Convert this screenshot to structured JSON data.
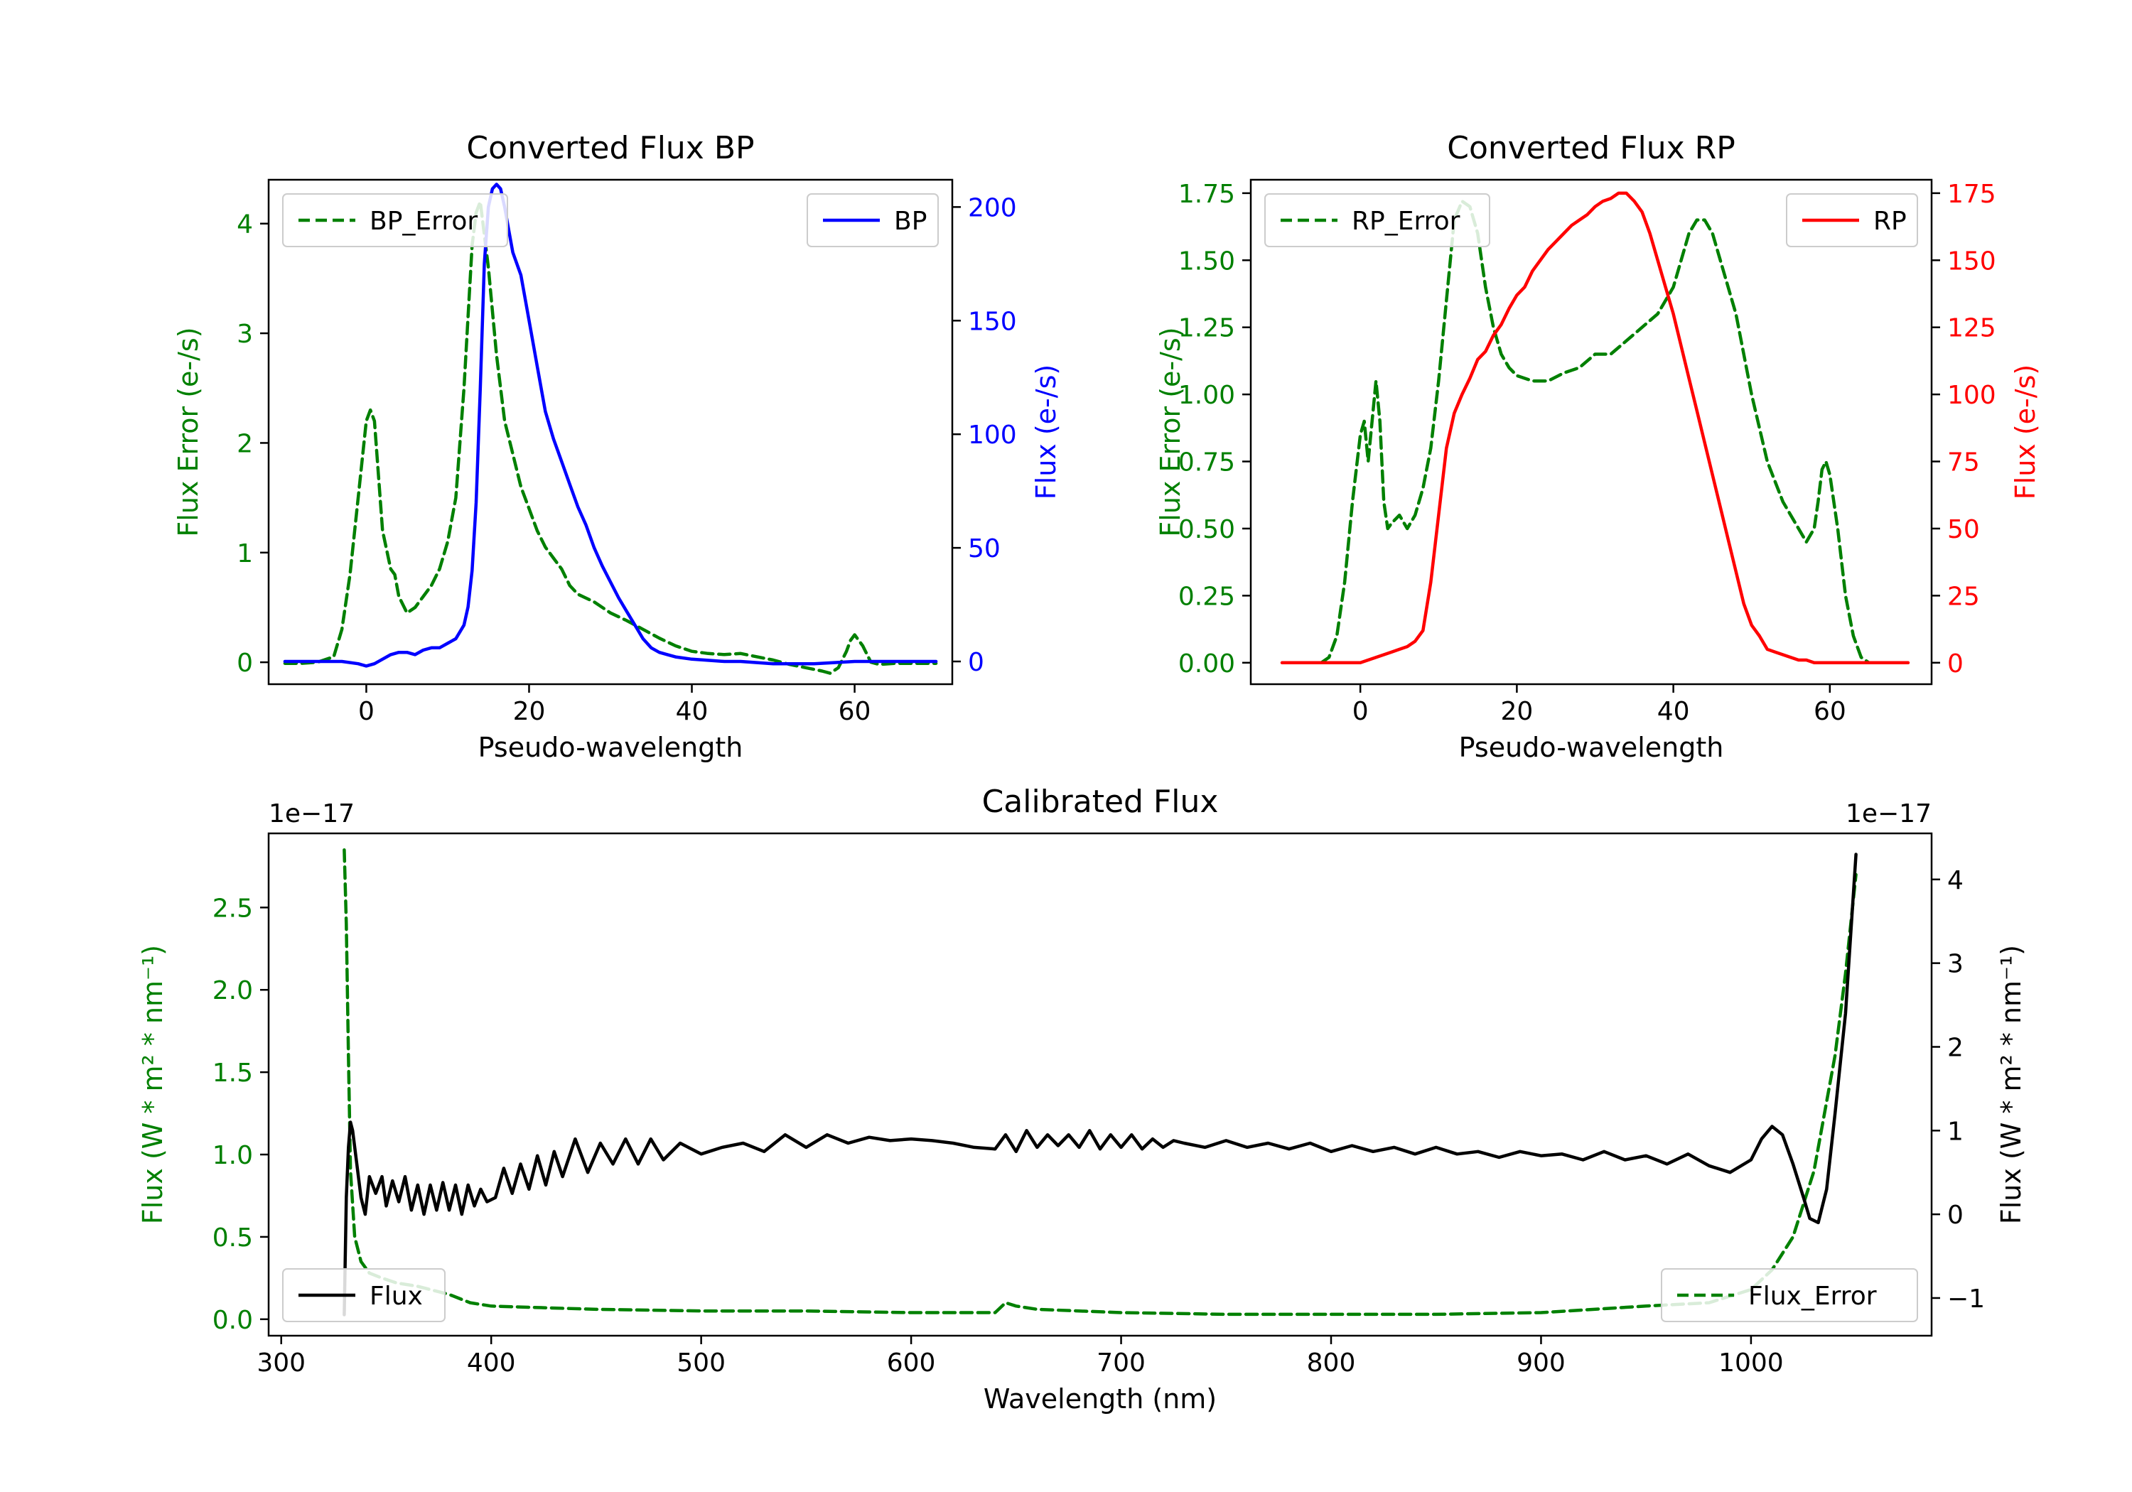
{
  "colors": {
    "bp": "#0000ff",
    "rp": "#ff0000",
    "error": "#008000",
    "flux": "#000000"
  },
  "chart_data": [
    {
      "id": "bp",
      "type": "line",
      "title": "Converted Flux BP",
      "xlabel": "Pseudo-wavelength",
      "xlim": [
        -12,
        72
      ],
      "xticks": [
        0,
        20,
        40,
        60
      ],
      "xtick_labels": [
        "0",
        "20",
        "40",
        "60"
      ],
      "left_axis": {
        "label": "Flux Error (e-/s)",
        "color": "#008000",
        "ylim": [
          -0.2,
          4.4
        ],
        "ticks": [
          0,
          1,
          2,
          3,
          4
        ],
        "tick_labels": [
          "0",
          "1",
          "2",
          "3",
          "4"
        ]
      },
      "right_axis": {
        "label": "Flux (e-/s)",
        "color": "#0000ff",
        "ylim": [
          -10,
          212
        ],
        "ticks": [
          0,
          50,
          100,
          150,
          200
        ],
        "tick_labels": [
          "0",
          "50",
          "100",
          "150",
          "200"
        ]
      },
      "series": [
        {
          "name": "BP_Error",
          "axis": "left",
          "style": "dashed",
          "color": "#008000",
          "x": [
            -10,
            -8,
            -6,
            -4,
            -3,
            -2,
            -1,
            0,
            0.5,
            1,
            1.5,
            2,
            3,
            3.5,
            4,
            5,
            6,
            7,
            8,
            9,
            10,
            11,
            12,
            13,
            13.5,
            14,
            15,
            16,
            17,
            18,
            19,
            20,
            21,
            22,
            23,
            24,
            25,
            26,
            28,
            30,
            32,
            34,
            36,
            38,
            40,
            42,
            44,
            46,
            48,
            50,
            52,
            54,
            56,
            57,
            58,
            59,
            59.5,
            60,
            61,
            62,
            63,
            65,
            70
          ],
          "y": [
            -0.01,
            -0.01,
            0.0,
            0.05,
            0.3,
            0.8,
            1.5,
            2.2,
            2.3,
            2.2,
            1.7,
            1.2,
            0.85,
            0.8,
            0.6,
            0.45,
            0.5,
            0.6,
            0.7,
            0.85,
            1.1,
            1.5,
            2.5,
            3.8,
            4.1,
            4.2,
            3.6,
            2.8,
            2.2,
            1.9,
            1.6,
            1.4,
            1.2,
            1.05,
            0.95,
            0.85,
            0.7,
            0.62,
            0.55,
            0.45,
            0.38,
            0.3,
            0.22,
            0.15,
            0.1,
            0.08,
            0.07,
            0.08,
            0.05,
            0.02,
            -0.02,
            -0.05,
            -0.08,
            -0.1,
            -0.05,
            0.1,
            0.2,
            0.25,
            0.15,
            0.0,
            -0.02,
            -0.01,
            -0.01
          ]
        },
        {
          "name": "BP",
          "axis": "right",
          "style": "solid",
          "color": "#0000ff",
          "x": [
            -10,
            -6,
            -3,
            -1,
            0,
            1,
            2,
            3,
            4,
            5,
            6,
            7,
            8,
            9,
            10,
            11,
            12,
            12.5,
            13,
            13.5,
            14,
            14.5,
            15,
            15.5,
            16,
            16.5,
            17,
            17.5,
            18,
            19,
            20,
            21,
            22,
            23,
            24,
            25,
            26,
            27,
            28,
            29,
            30,
            31,
            32,
            33,
            34,
            35,
            36,
            37,
            38,
            40,
            42,
            44,
            46,
            48,
            50,
            55,
            60,
            65,
            70
          ],
          "y": [
            0,
            0,
            0,
            -1,
            -2,
            -1,
            1,
            3,
            4,
            4,
            3,
            5,
            6,
            6,
            8,
            10,
            16,
            24,
            40,
            70,
            120,
            175,
            200,
            208,
            210,
            208,
            200,
            190,
            180,
            170,
            150,
            130,
            110,
            98,
            88,
            78,
            68,
            60,
            50,
            42,
            35,
            28,
            22,
            16,
            10,
            6,
            4,
            3,
            2,
            1,
            0.5,
            0,
            0,
            -0.5,
            -1,
            -1,
            0,
            0,
            0
          ]
        }
      ],
      "legend": [
        {
          "label": "BP_Error",
          "style": "dashed",
          "position": "upper left"
        },
        {
          "label": "BP",
          "style": "solid",
          "position": "upper right"
        }
      ]
    },
    {
      "id": "rp",
      "type": "line",
      "title": "Converted Flux RP",
      "xlabel": "Pseudo-wavelength",
      "xlim": [
        -14,
        73
      ],
      "xticks": [
        0,
        20,
        40,
        60
      ],
      "xtick_labels": [
        "0",
        "20",
        "40",
        "60"
      ],
      "left_axis": {
        "label": "Flux Error (e-/s)",
        "color": "#008000",
        "ylim": [
          -0.08,
          1.8
        ],
        "ticks": [
          0,
          0.25,
          0.5,
          0.75,
          1.0,
          1.25,
          1.5,
          1.75
        ],
        "tick_labels": [
          "0.00",
          "0.25",
          "0.50",
          "0.75",
          "1.00",
          "1.25",
          "1.50",
          "1.75"
        ]
      },
      "right_axis": {
        "label": "Flux (e-/s)",
        "color": "#ff0000",
        "ylim": [
          -8,
          180
        ],
        "ticks": [
          0,
          25,
          50,
          75,
          100,
          125,
          150,
          175
        ],
        "tick_labels": [
          "0",
          "25",
          "50",
          "75",
          "100",
          "125",
          "150",
          "175"
        ]
      },
      "series": [
        {
          "name": "RP_Error",
          "axis": "left",
          "style": "dashed",
          "color": "#008000",
          "x": [
            -5,
            -4,
            -3,
            -2,
            -1,
            0,
            0.5,
            1,
            1.5,
            2,
            2.5,
            3,
            3.5,
            4,
            5,
            6,
            7,
            8,
            9,
            10,
            11,
            12,
            13,
            14,
            15,
            16,
            17,
            18,
            19,
            20,
            22,
            24,
            26,
            28,
            30,
            32,
            34,
            36,
            38,
            40,
            41,
            42,
            43,
            44,
            45,
            46,
            48,
            50,
            52,
            54,
            55,
            56,
            57,
            58,
            58.5,
            59,
            59.5,
            60,
            61,
            62,
            63,
            64,
            65
          ],
          "y": [
            0,
            0.02,
            0.1,
            0.3,
            0.6,
            0.85,
            0.9,
            0.75,
            0.9,
            1.05,
            0.9,
            0.6,
            0.5,
            0.52,
            0.55,
            0.5,
            0.55,
            0.65,
            0.8,
            1.05,
            1.35,
            1.65,
            1.72,
            1.7,
            1.6,
            1.4,
            1.25,
            1.15,
            1.1,
            1.07,
            1.05,
            1.05,
            1.08,
            1.1,
            1.15,
            1.15,
            1.2,
            1.25,
            1.3,
            1.4,
            1.5,
            1.6,
            1.65,
            1.65,
            1.6,
            1.5,
            1.3,
            1.0,
            0.75,
            0.6,
            0.55,
            0.5,
            0.45,
            0.5,
            0.6,
            0.72,
            0.75,
            0.7,
            0.5,
            0.25,
            0.1,
            0.02,
            0
          ]
        },
        {
          "name": "RP",
          "axis": "right",
          "style": "solid",
          "color": "#ff0000",
          "x": [
            -10,
            -5,
            -1,
            0,
            1,
            2,
            3,
            4,
            5,
            6,
            7,
            8,
            9,
            10,
            11,
            12,
            13,
            14,
            15,
            16,
            17,
            18,
            19,
            20,
            21,
            22,
            23,
            24,
            25,
            26,
            27,
            28,
            29,
            30,
            31,
            32,
            33,
            34,
            35,
            36,
            37,
            38,
            39,
            40,
            41,
            42,
            43,
            44,
            45,
            46,
            47,
            48,
            49,
            50,
            51,
            52,
            53,
            54,
            55,
            56,
            57,
            58,
            59,
            60,
            62,
            65,
            70
          ],
          "y": [
            0,
            0,
            0,
            0,
            1,
            2,
            3,
            4,
            5,
            6,
            8,
            12,
            30,
            55,
            80,
            93,
            100,
            106,
            113,
            116,
            122,
            126,
            132,
            137,
            140,
            146,
            150,
            154,
            157,
            160,
            163,
            165,
            167,
            170,
            172,
            173,
            175,
            175,
            172,
            168,
            160,
            150,
            140,
            130,
            118,
            106,
            94,
            82,
            70,
            58,
            46,
            34,
            22,
            14,
            10,
            5,
            4,
            3,
            2,
            1,
            1,
            0,
            0,
            0,
            0,
            0,
            0
          ]
        }
      ],
      "legend": [
        {
          "label": "RP_Error",
          "style": "dashed",
          "position": "upper left"
        },
        {
          "label": "RP",
          "style": "solid",
          "position": "upper right"
        }
      ]
    },
    {
      "id": "calibrated",
      "type": "line",
      "title": "Calibrated Flux",
      "xlabel": "Wavelength (nm)",
      "xlim": [
        294,
        1086
      ],
      "xticks": [
        300,
        400,
        500,
        600,
        700,
        800,
        900,
        1000
      ],
      "xtick_labels": [
        "300",
        "400",
        "500",
        "600",
        "700",
        "800",
        "900",
        "1000"
      ],
      "left_axis": {
        "label": "Flux (W * m² * nm⁻¹)",
        "color": "#008000",
        "offset_text": "1e−17",
        "ylim": [
          -0.1,
          2.95
        ],
        "ticks": [
          0.0,
          0.5,
          1.0,
          1.5,
          2.0,
          2.5
        ],
        "tick_labels": [
          "0.0",
          "0.5",
          "1.0",
          "1.5",
          "2.0",
          "2.5"
        ]
      },
      "right_axis": {
        "label": "Flux (W * m² * nm⁻¹)",
        "color": "#000000",
        "offset_text": "1e−17",
        "ylim": [
          -1.45,
          4.55
        ],
        "ticks": [
          -1,
          0,
          1,
          2,
          3,
          4
        ],
        "tick_labels": [
          "−1",
          "0",
          "1",
          "2",
          "3",
          "4"
        ]
      },
      "series": [
        {
          "name": "Flux_Error",
          "axis": "left",
          "style": "dashed",
          "color": "#008000",
          "x": [
            330,
            331,
            332,
            333,
            335,
            338,
            342,
            348,
            355,
            365,
            380,
            390,
            400,
            450,
            500,
            550,
            600,
            640,
            645,
            650,
            660,
            700,
            750,
            800,
            850,
            900,
            950,
            980,
            1000,
            1010,
            1020,
            1030,
            1040,
            1045,
            1050
          ],
          "y": [
            2.85,
            2.4,
            1.6,
            0.9,
            0.5,
            0.35,
            0.28,
            0.25,
            0.22,
            0.2,
            0.15,
            0.1,
            0.08,
            0.06,
            0.05,
            0.05,
            0.04,
            0.04,
            0.1,
            0.08,
            0.06,
            0.04,
            0.03,
            0.03,
            0.03,
            0.04,
            0.08,
            0.1,
            0.18,
            0.3,
            0.5,
            0.9,
            1.6,
            2.1,
            2.7
          ]
        },
        {
          "name": "Flux",
          "axis": "right",
          "style": "solid",
          "color": "#000000",
          "x": [
            330,
            331,
            332,
            333,
            334,
            336,
            338,
            340,
            342,
            345,
            348,
            350,
            353,
            356,
            359,
            362,
            365,
            368,
            371,
            374,
            377,
            380,
            383,
            386,
            389,
            392,
            395,
            398,
            402,
            406,
            410,
            414,
            418,
            422,
            426,
            430,
            434,
            440,
            446,
            452,
            458,
            464,
            470,
            476,
            482,
            490,
            500,
            510,
            520,
            530,
            540,
            550,
            560,
            570,
            580,
            590,
            600,
            610,
            620,
            630,
            640,
            645,
            650,
            655,
            660,
            665,
            670,
            675,
            680,
            685,
            690,
            695,
            700,
            705,
            710,
            715,
            720,
            725,
            730,
            740,
            750,
            760,
            770,
            780,
            790,
            800,
            810,
            820,
            830,
            840,
            850,
            860,
            870,
            880,
            890,
            900,
            910,
            920,
            930,
            940,
            950,
            960,
            970,
            980,
            990,
            1000,
            1005,
            1010,
            1015,
            1020,
            1025,
            1028,
            1032,
            1036,
            1040,
            1045,
            1050
          ],
          "y": [
            -1.2,
            0.2,
            0.8,
            1.1,
            1.0,
            0.6,
            0.2,
            0.0,
            0.45,
            0.25,
            0.45,
            0.1,
            0.4,
            0.15,
            0.45,
            0.05,
            0.35,
            0.0,
            0.35,
            0.05,
            0.38,
            0.05,
            0.35,
            0.0,
            0.35,
            0.1,
            0.3,
            0.15,
            0.2,
            0.55,
            0.25,
            0.6,
            0.3,
            0.7,
            0.35,
            0.75,
            0.45,
            0.9,
            0.5,
            0.85,
            0.6,
            0.9,
            0.6,
            0.9,
            0.65,
            0.85,
            0.72,
            0.8,
            0.85,
            0.75,
            0.95,
            0.8,
            0.95,
            0.85,
            0.92,
            0.88,
            0.9,
            0.88,
            0.85,
            0.8,
            0.78,
            0.95,
            0.75,
            1.0,
            0.8,
            0.95,
            0.82,
            0.95,
            0.8,
            1.0,
            0.78,
            0.95,
            0.8,
            0.95,
            0.78,
            0.9,
            0.8,
            0.88,
            0.85,
            0.8,
            0.88,
            0.8,
            0.85,
            0.78,
            0.85,
            0.75,
            0.82,
            0.75,
            0.8,
            0.72,
            0.8,
            0.72,
            0.75,
            0.68,
            0.75,
            0.7,
            0.72,
            0.65,
            0.75,
            0.65,
            0.7,
            0.6,
            0.72,
            0.58,
            0.5,
            0.65,
            0.9,
            1.05,
            0.95,
            0.6,
            0.2,
            -0.05,
            -0.1,
            0.3,
            1.2,
            2.4,
            4.3
          ]
        }
      ],
      "legend": [
        {
          "label": "Flux",
          "style": "solid",
          "position": "lower left"
        },
        {
          "label": "Flux_Error",
          "style": "dashed",
          "position": "lower right"
        }
      ]
    }
  ]
}
